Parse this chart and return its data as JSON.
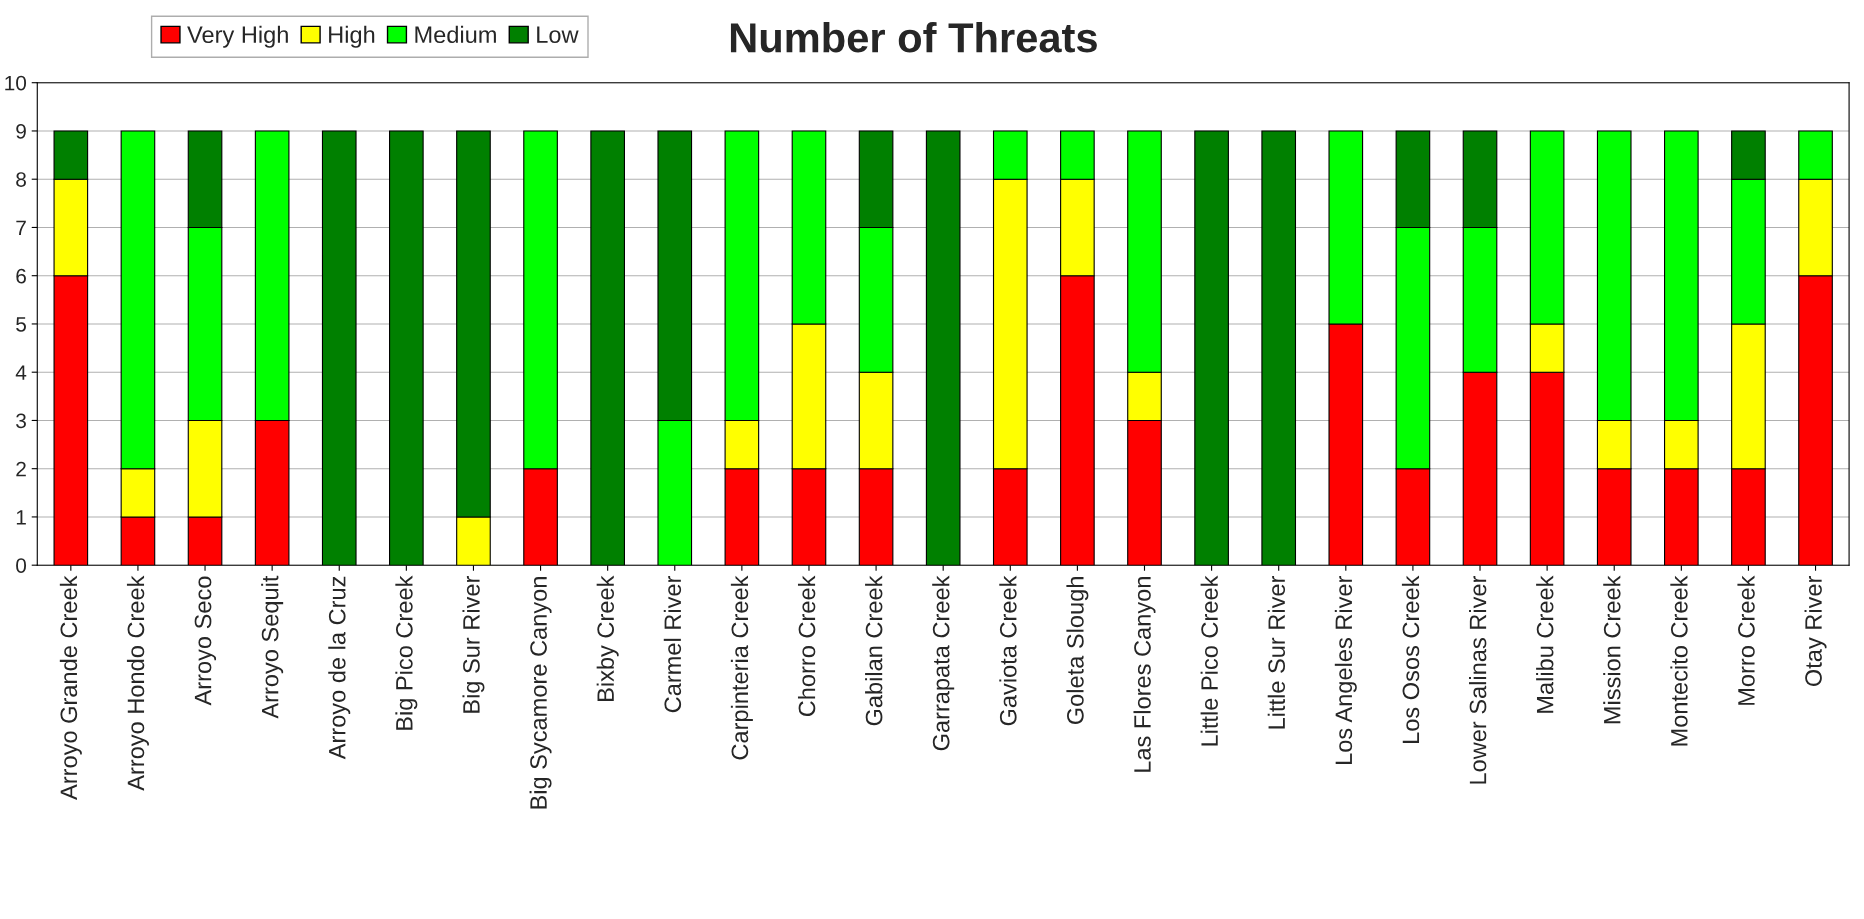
{
  "chart_data": {
    "type": "bar",
    "title": "Number of Threats",
    "stacked": true,
    "grid": "y",
    "legend": "top left",
    "categories": [
      "Arroyo Grande Creek",
      "Arroyo Hondo Creek",
      "Arroyo Seco",
      "Arroyo Sequit",
      "Arroyo de la Cruz",
      "Big Pico Creek",
      "Big Sur River",
      "Big Sycamore Canyon",
      "Bixby Creek",
      "Carmel River",
      "Carpinteria Creek",
      "Chorro Creek",
      "Gabilan Creek",
      "Garrapata Creek",
      "Gaviota Creek",
      "Goleta Slough",
      "Las Flores Canyon",
      "Little Pico Creek",
      "Little Sur River",
      "Los Angeles River",
      "Los Osos Creek",
      "Lower Salinas River",
      "Malibu Creek",
      "Mission Creek",
      "Montecito Creek",
      "Morro Creek",
      "Otay River"
    ],
    "series": [
      {
        "name": "Very High",
        "color": "#ff0000",
        "values": [
          6,
          1,
          1,
          3,
          0,
          0,
          0,
          2,
          0,
          0,
          2,
          2,
          2,
          0,
          2,
          6,
          3,
          0,
          0,
          5,
          2,
          4,
          4,
          2,
          2,
          2,
          6
        ]
      },
      {
        "name": "High",
        "color": "#ffff00",
        "values": [
          2,
          1,
          2,
          0,
          0,
          0,
          1,
          0,
          0,
          0,
          1,
          3,
          2,
          0,
          6,
          2,
          1,
          0,
          0,
          0,
          0,
          0,
          1,
          1,
          1,
          3,
          2
        ]
      },
      {
        "name": "Medium",
        "color": "#00ff00",
        "values": [
          0,
          7,
          4,
          6,
          0,
          0,
          0,
          7,
          0,
          3,
          6,
          4,
          3,
          0,
          1,
          1,
          5,
          0,
          0,
          4,
          5,
          3,
          4,
          6,
          6,
          3,
          1
        ]
      },
      {
        "name": "Low",
        "color": "#008000",
        "values": [
          1,
          0,
          2,
          0,
          9,
          9,
          8,
          0,
          9,
          6,
          0,
          0,
          2,
          9,
          0,
          0,
          0,
          9,
          9,
          0,
          2,
          2,
          0,
          0,
          0,
          1,
          0
        ]
      }
    ],
    "ylim": [
      0,
      10
    ],
    "yticks": [
      0,
      1,
      2,
      3,
      4,
      5,
      6,
      7,
      8,
      9,
      10
    ]
  }
}
